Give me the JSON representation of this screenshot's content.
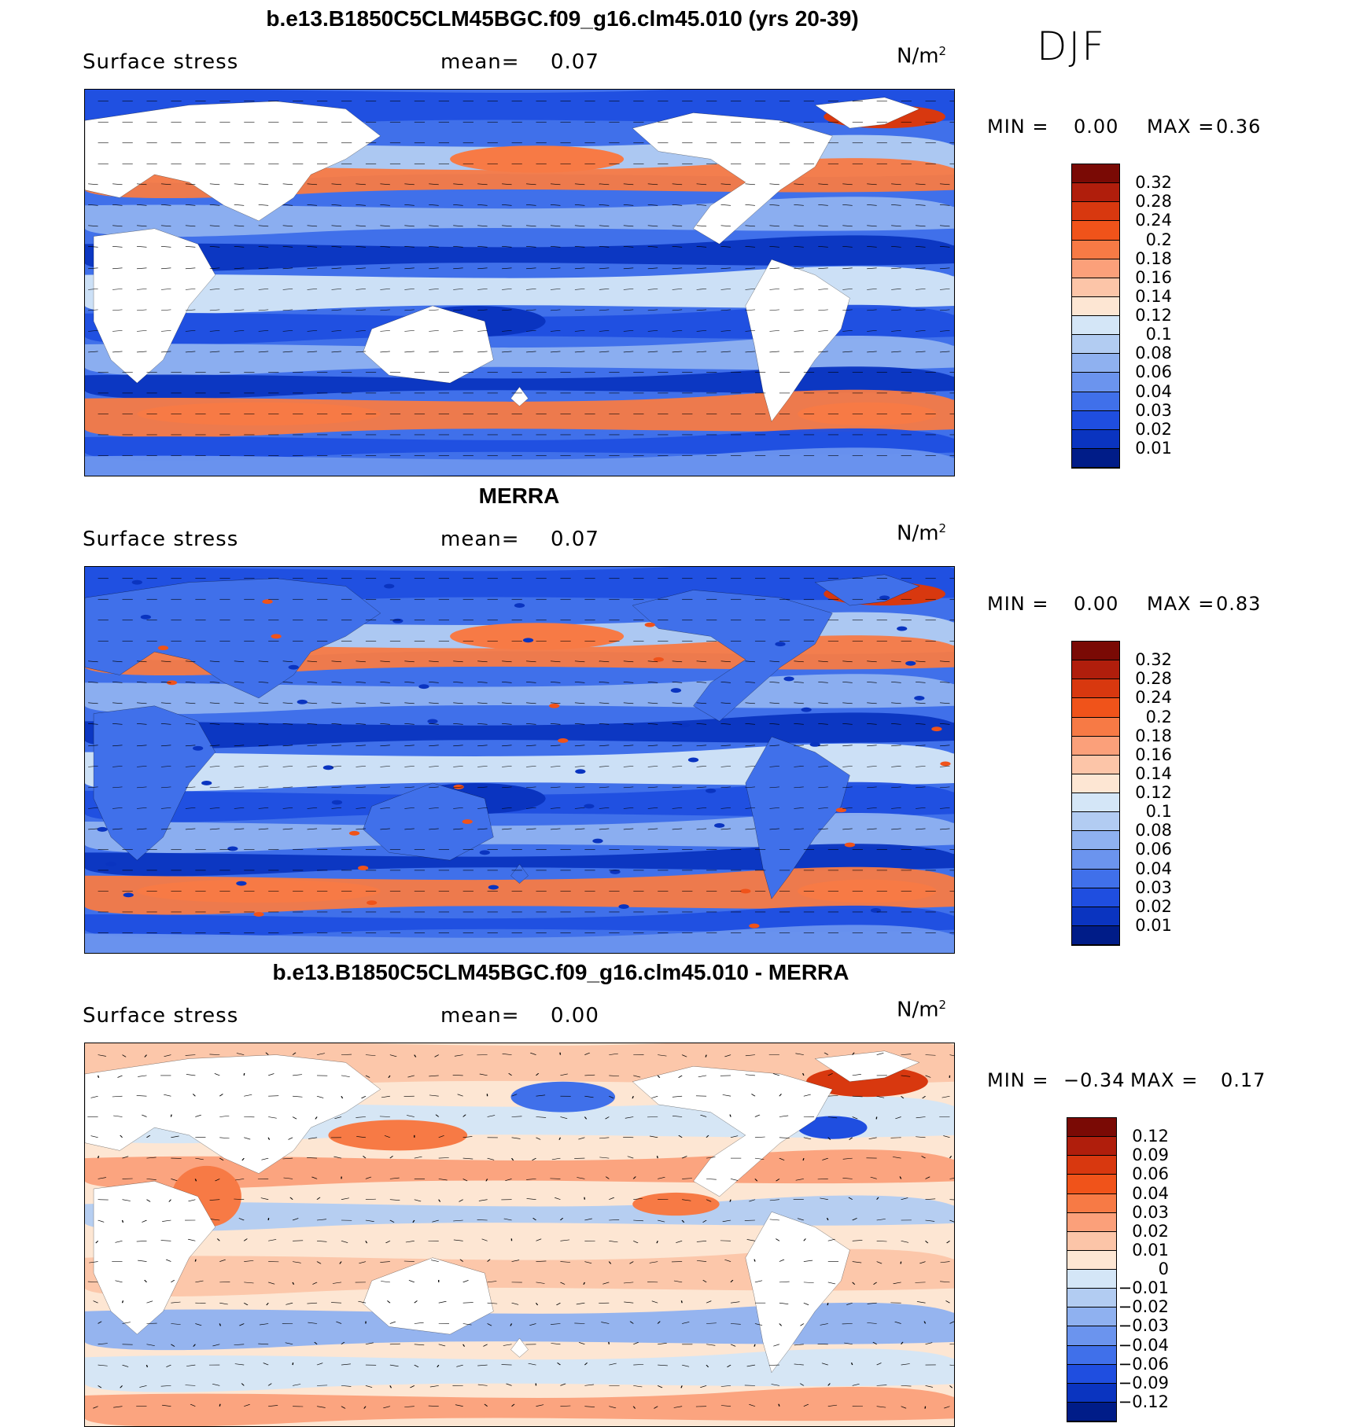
{
  "season": "DJF",
  "panels": [
    {
      "title": "b.e13.B1850C5CLM45BGC.f09_g16.clm45.010 (yrs 20-39)",
      "variable": "Surface stress",
      "mean_label": "mean=",
      "mean_value": "0.07",
      "units": "N/m",
      "units_sup": "2",
      "min_label": "MIN =",
      "min_value": "0.00",
      "max_label": "MAX =",
      "max_value": "0.36"
    },
    {
      "title": "MERRA",
      "variable": "Surface stress",
      "mean_label": "mean=",
      "mean_value": "0.07",
      "units": "N/m",
      "units_sup": "2",
      "min_label": "MIN =",
      "min_value": "0.00",
      "max_label": "MAX =",
      "max_value": "0.83"
    },
    {
      "title": "b.e13.B1850C5CLM45BGC.f09_g16.clm45.010 - MERRA",
      "variable": "Surface stress",
      "mean_label": "mean=",
      "mean_value": "0.00",
      "units": "N/m",
      "units_sup": "2",
      "min_label": "MIN =",
      "min_value": "−0.34",
      "max_label": "MAX =",
      "max_value": "0.17"
    }
  ],
  "colorbars": {
    "abs": {
      "labels": [
        "0.32",
        "0.28",
        "0.24",
        "0.2",
        "0.18",
        "0.16",
        "0.14",
        "0.12",
        "0.1",
        "0.08",
        "0.06",
        "0.04",
        "0.03",
        "0.02",
        "0.01"
      ],
      "colors": [
        "#7a0a05",
        "#b01e0c",
        "#d8380f",
        "#f0531a",
        "#f77a45",
        "#fba07a",
        "#fcc5a8",
        "#fde6d3",
        "#d4e6f7",
        "#b2ccf2",
        "#8fb1f0",
        "#6b94ee",
        "#4070ea",
        "#1f4ee0",
        "#0a34c0",
        "#001c88"
      ]
    },
    "diff": {
      "labels": [
        "0.12",
        "0.09",
        "0.06",
        "0.04",
        "0.03",
        "0.02",
        "0.01",
        "0",
        "−0.01",
        "−0.02",
        "−0.03",
        "−0.04",
        "−0.06",
        "−0.09",
        "−0.12"
      ],
      "colors": [
        "#7a0a05",
        "#b01e0c",
        "#d8380f",
        "#f0531a",
        "#f77a45",
        "#fba07a",
        "#fcc5a8",
        "#fde6d3",
        "#d4e6f7",
        "#b2ccf2",
        "#8fb1f0",
        "#6b94ee",
        "#4070ea",
        "#1f4ee0",
        "#0a34c0",
        "#001c88"
      ]
    }
  },
  "chart_data": [
    {
      "type": "heatmap",
      "title": "b.e13.B1850C5CLM45BGC.f09_g16.clm45.010 (yrs 20-39)",
      "variable": "Surface stress",
      "units": "N/m2",
      "mean": 0.07,
      "min": 0.0,
      "max": 0.36,
      "contour_levels": [
        0.01,
        0.02,
        0.03,
        0.04,
        0.06,
        0.08,
        0.1,
        0.12,
        0.14,
        0.16,
        0.18,
        0.2,
        0.24,
        0.28,
        0.32
      ],
      "overlay": "wind stress vectors"
    },
    {
      "type": "heatmap",
      "title": "MERRA",
      "variable": "Surface stress",
      "units": "N/m2",
      "mean": 0.07,
      "min": 0.0,
      "max": 0.83,
      "contour_levels": [
        0.01,
        0.02,
        0.03,
        0.04,
        0.06,
        0.08,
        0.1,
        0.12,
        0.14,
        0.16,
        0.18,
        0.2,
        0.24,
        0.28,
        0.32
      ],
      "overlay": "wind stress vectors"
    },
    {
      "type": "heatmap",
      "title": "b.e13.B1850C5CLM45BGC.f09_g16.clm45.010 - MERRA",
      "variable": "Surface stress",
      "units": "N/m2",
      "mean": 0.0,
      "min": -0.34,
      "max": 0.17,
      "contour_levels": [
        -0.12,
        -0.09,
        -0.06,
        -0.04,
        -0.03,
        -0.02,
        -0.01,
        0,
        0.01,
        0.02,
        0.03,
        0.04,
        0.06,
        0.09,
        0.12
      ],
      "overlay": "wind stress difference vectors"
    }
  ]
}
